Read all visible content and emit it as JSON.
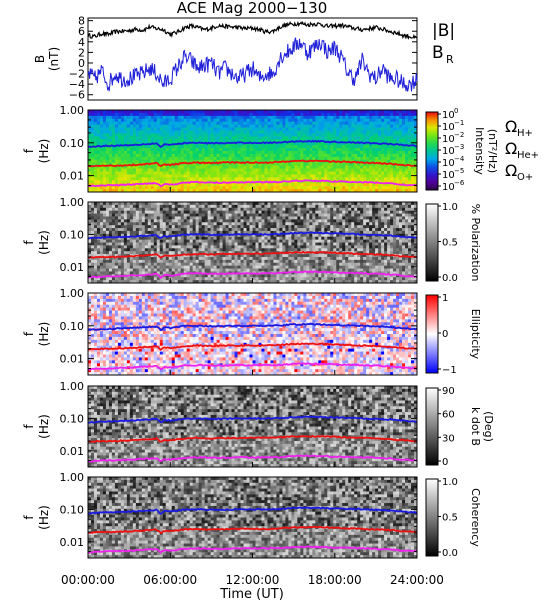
{
  "chart_data": {
    "title": "ACE Mag 2000−130",
    "type": "line",
    "x_label": "Time (UT)",
    "x_ticks": [
      "00:00:00",
      "06:00:00",
      "12:00:00",
      "18:00:00",
      "24:00:00"
    ],
    "x_range_hours": [
      0,
      24
    ],
    "panels": [
      {
        "id": "B",
        "type": "line",
        "ylabel_lines": [
          "B",
          "(nT)"
        ],
        "ylim": [
          -7,
          8.5
        ],
        "yticks": [
          "8",
          "6",
          "4",
          "2",
          "0",
          "−2",
          "−4",
          "−6"
        ],
        "ytick_values": [
          8,
          6,
          4,
          2,
          0,
          -2,
          -4,
          -6
        ],
        "legend": [
          {
            "label": "|B|",
            "color": "#000000"
          },
          {
            "label": "B",
            "sub": "R",
            "color": "#2020d8"
          }
        ],
        "series": [
          {
            "name": "|B|",
            "color": "#000000",
            "x": [
              0,
              0.5,
              1,
              1.5,
              2,
              2.5,
              3,
              3.5,
              4,
              4.5,
              5,
              5.5,
              6,
              6.5,
              7,
              7.5,
              8,
              8.5,
              9,
              9.5,
              10,
              10.5,
              11,
              11.5,
              12,
              12.5,
              13,
              13.5,
              14,
              14.5,
              15,
              15.5,
              16,
              16.5,
              17,
              17.5,
              18,
              18.5,
              19,
              19.5,
              20,
              20.5,
              21,
              21.5,
              22,
              22.5,
              23,
              23.5,
              24
            ],
            "y": [
              5.2,
              5.0,
              5.6,
              5.4,
              5.9,
              6.0,
              6.1,
              6.4,
              6.2,
              6.8,
              6.5,
              6.3,
              5.4,
              5.8,
              6.6,
              7.0,
              6.7,
              6.3,
              6.6,
              7.1,
              6.9,
              6.8,
              6.7,
              6.5,
              6.6,
              6.3,
              5.9,
              6.0,
              6.8,
              7.2,
              7.4,
              7.5,
              7.2,
              7.4,
              7.3,
              6.9,
              7.0,
              7.1,
              6.8,
              6.5,
              6.3,
              6.5,
              6.7,
              6.4,
              6.0,
              5.7,
              5.2,
              5.0,
              4.6
            ]
          },
          {
            "name": "B_R",
            "color": "#2020d8",
            "x": [
              0,
              0.5,
              1,
              1.5,
              2,
              2.5,
              3,
              3.5,
              4,
              4.5,
              5,
              5.5,
              6,
              6.5,
              7,
              7.5,
              8,
              8.5,
              9,
              9.5,
              10,
              10.5,
              11,
              11.5,
              12,
              12.5,
              13,
              13.5,
              14,
              14.5,
              15,
              15.5,
              16,
              16.5,
              17,
              17.5,
              18,
              18.5,
              19,
              19.5,
              20,
              20.5,
              21,
              21.5,
              22,
              22.5,
              23,
              23.5,
              24
            ],
            "y": [
              -2,
              -3,
              -1.5,
              -4,
              -2,
              -3,
              -3,
              -2.5,
              -2,
              -1,
              -2,
              -4,
              -3,
              -1,
              1,
              0.5,
              -1,
              -0.5,
              0,
              -2,
              -1,
              -2,
              -3,
              -2,
              -1,
              -3,
              -2,
              -2,
              1,
              2,
              3,
              4,
              2,
              3,
              4,
              2,
              3,
              1,
              -2,
              -3,
              0.5,
              -2,
              -3,
              -1,
              -3,
              -3,
              -4,
              -4,
              -3
            ]
          }
        ]
      },
      {
        "id": "intensity",
        "type": "heatmap",
        "ylabel_lines": [
          "f",
          "(Hz)"
        ],
        "ylim_log10": [
          -2.5,
          0
        ],
        "yticks": [
          "1.00",
          "0.10",
          "0.01"
        ],
        "ytick_values": [
          1.0,
          0.1,
          0.01
        ],
        "colorbar": {
          "scale": "rainbow",
          "ticks": [
            "10",
            "10",
            "10",
            "10",
            "10",
            "10",
            "10"
          ],
          "tick_exponents": [
            "0",
            "−1",
            "−2",
            "−3",
            "−4",
            "−5",
            "−6"
          ],
          "label_lines": [
            "Intensity",
            "(nT²/Hz)"
          ]
        },
        "legend": [
          {
            "symbol": "Ω",
            "sub": "H+",
            "color": "#2020d8"
          },
          {
            "symbol": "Ω",
            "sub": "He+",
            "color": "#e01010"
          },
          {
            "symbol": "Ω",
            "sub": "O+",
            "color": "#e010e0"
          }
        ]
      },
      {
        "id": "polarization",
        "type": "heatmap",
        "ylabel_lines": [
          "f",
          "(Hz)"
        ],
        "yticks": [
          "1.00",
          "0.10",
          "0.01"
        ],
        "colorbar": {
          "scale": "gray",
          "ticks": [
            "1.0",
            "0.5",
            "0.0"
          ],
          "label_lines": [
            "% Polarization"
          ]
        }
      },
      {
        "id": "ellipticity",
        "type": "heatmap",
        "ylabel_lines": [
          "f",
          "(Hz)"
        ],
        "yticks": [
          "1.00",
          "0.10",
          "0.01"
        ],
        "colorbar": {
          "scale": "bwr",
          "ticks": [
            "1",
            "0",
            "−1"
          ],
          "label_lines": [
            "Ellipticity"
          ]
        }
      },
      {
        "id": "kdotb",
        "type": "heatmap",
        "ylabel_lines": [
          "f",
          "(Hz)"
        ],
        "yticks": [
          "1.00",
          "0.10",
          "0.01"
        ],
        "colorbar": {
          "scale": "gray",
          "ticks": [
            "90",
            "60",
            "30",
            "0"
          ],
          "label_lines": [
            "k dot B",
            "(Deg)"
          ]
        }
      },
      {
        "id": "coherency",
        "type": "heatmap",
        "ylabel_lines": [
          "f",
          "(Hz)"
        ],
        "yticks": [
          "1.00",
          "0.10",
          "0.01"
        ],
        "colorbar": {
          "scale": "gray",
          "ticks": [
            "1.0",
            "0.5",
            "0.0"
          ],
          "label_lines": [
            "Coherency"
          ]
        }
      }
    ],
    "gyrofrequency_lines_hz": {
      "hours": [
        0,
        1,
        2,
        3,
        4,
        5,
        5.3,
        5.6,
        6,
        7,
        8,
        9,
        10,
        11,
        12,
        13,
        14,
        15,
        16,
        17,
        18,
        19,
        20,
        21,
        22,
        23,
        24
      ],
      "H+": [
        0.075,
        0.08,
        0.082,
        0.085,
        0.09,
        0.096,
        0.075,
        0.09,
        0.085,
        0.098,
        0.1,
        0.097,
        0.098,
        0.1,
        0.1,
        0.1,
        0.103,
        0.11,
        0.112,
        0.11,
        0.106,
        0.104,
        0.1,
        0.097,
        0.092,
        0.085,
        0.08
      ],
      "He+": [
        0.019,
        0.02,
        0.02,
        0.021,
        0.022,
        0.024,
        0.019,
        0.022,
        0.021,
        0.024,
        0.025,
        0.024,
        0.025,
        0.025,
        0.025,
        0.025,
        0.026,
        0.028,
        0.028,
        0.028,
        0.027,
        0.026,
        0.025,
        0.024,
        0.023,
        0.021,
        0.02
      ],
      "O+": [
        0.0047,
        0.005,
        0.0051,
        0.0053,
        0.0056,
        0.006,
        0.0047,
        0.0056,
        0.0053,
        0.0061,
        0.0063,
        0.0061,
        0.0061,
        0.0063,
        0.0063,
        0.0063,
        0.0064,
        0.0069,
        0.007,
        0.0069,
        0.0066,
        0.0065,
        0.0063,
        0.0061,
        0.0058,
        0.0053,
        0.005
      ]
    },
    "colors": {
      "H+": "#1a1ae0",
      "He+": "#ee1111",
      "O+": "#ee22ee"
    }
  }
}
